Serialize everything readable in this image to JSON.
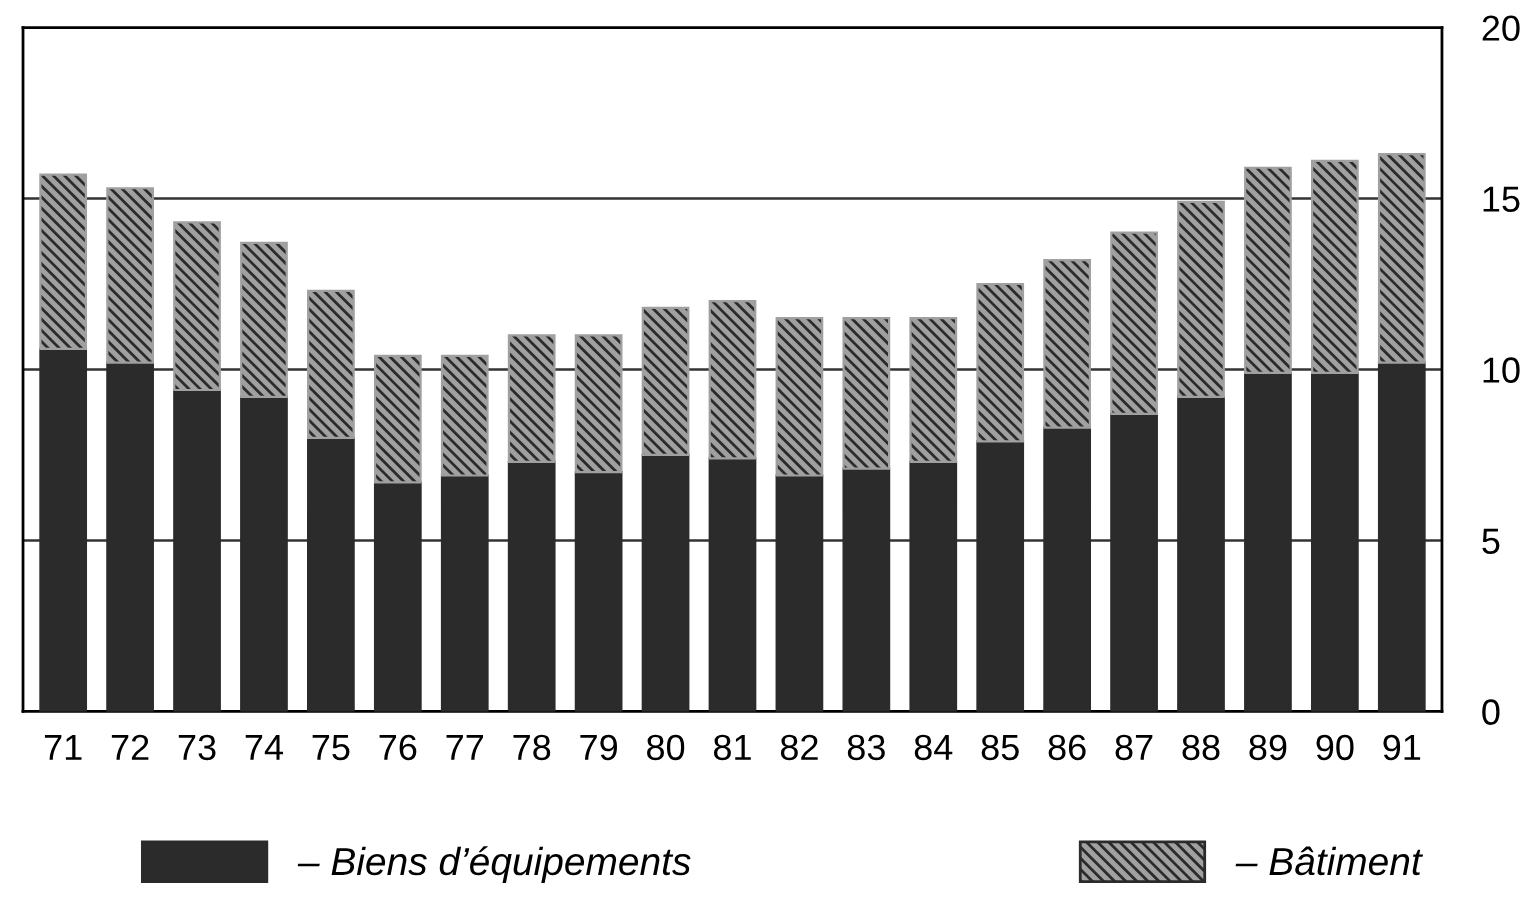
{
  "chart_data": {
    "type": "bar",
    "stacked": true,
    "categories": [
      "71",
      "72",
      "73",
      "74",
      "75",
      "76",
      "77",
      "78",
      "79",
      "80",
      "81",
      "82",
      "83",
      "84",
      "85",
      "86",
      "87",
      "88",
      "89",
      "90",
      "91"
    ],
    "series": [
      {
        "name": "– Biens d’équipements",
        "color": "#2b2b2b",
        "values": [
          10.6,
          10.2,
          9.4,
          9.2,
          8.0,
          6.7,
          6.9,
          7.3,
          7.0,
          7.5,
          7.4,
          6.9,
          7.1,
          7.3,
          7.9,
          8.3,
          8.7,
          9.2,
          9.9,
          9.9,
          10.2
        ]
      },
      {
        "name": "– Bâtiment",
        "color": "#a0a0a0",
        "values": [
          5.1,
          5.1,
          4.9,
          4.5,
          4.3,
          3.7,
          3.5,
          3.7,
          4.0,
          4.3,
          4.6,
          4.6,
          4.4,
          4.2,
          4.6,
          4.9,
          5.3,
          5.7,
          6.0,
          6.2,
          6.1
        ]
      }
    ],
    "ylim": [
      0,
      20
    ],
    "yticks": [
      0,
      5,
      10,
      15,
      20
    ],
    "grid": "y",
    "legend": "bottom"
  }
}
